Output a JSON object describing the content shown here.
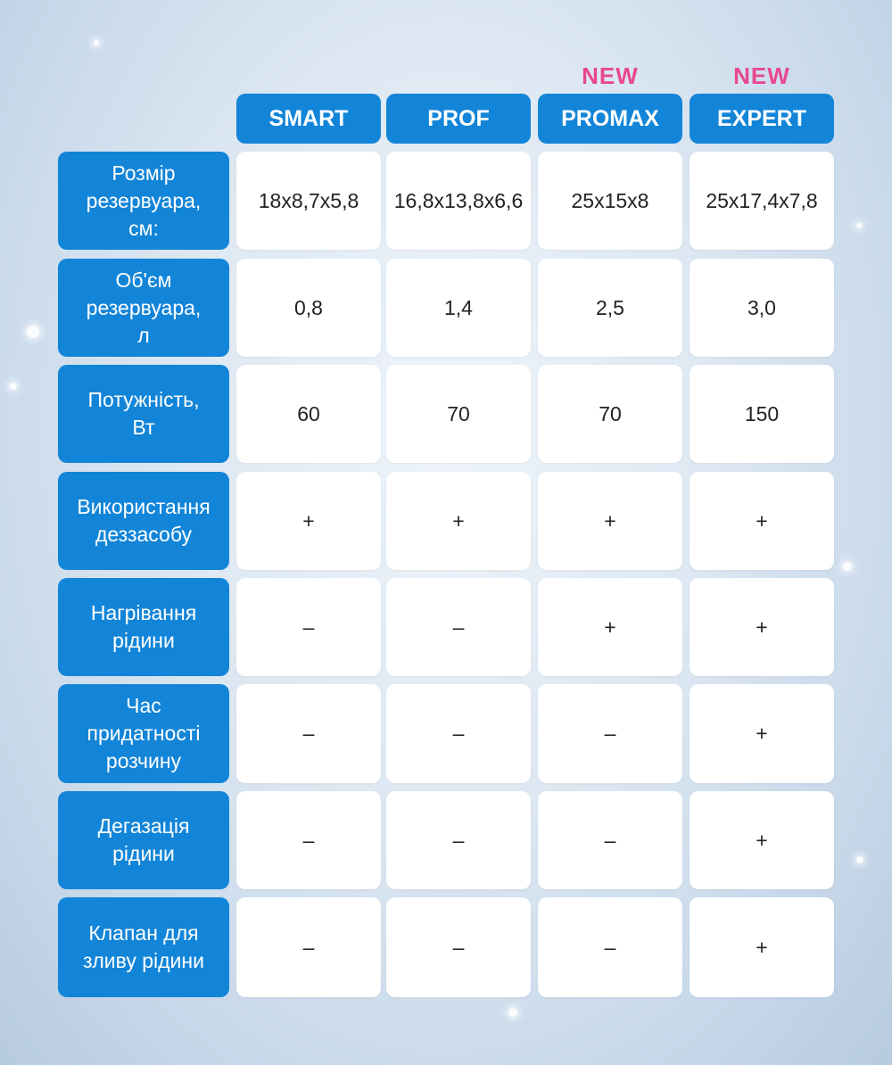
{
  "columns": [
    {
      "name": "SMART",
      "tag": ""
    },
    {
      "name": "PROF",
      "tag": ""
    },
    {
      "name": "PROMAX",
      "tag": "NEW"
    },
    {
      "name": "EXPERT",
      "tag": "NEW"
    }
  ],
  "rows": [
    {
      "label": "Розмір\nрезервуара,\nсм:",
      "values": [
        "18x8,7x5,8",
        "16,8x13,8x6,6",
        "25x15x8",
        "25x17,4x7,8"
      ]
    },
    {
      "label": "Об'єм\nрезервуара,\nл",
      "values": [
        "0,8",
        "1,4",
        "2,5",
        "3,0"
      ]
    },
    {
      "label": "Потужність,\nВт",
      "values": [
        "60",
        "70",
        "70",
        "150"
      ]
    },
    {
      "label": "Використання\nдеззасобу",
      "values": [
        "+",
        "+",
        "+",
        "+"
      ]
    },
    {
      "label": "Нагрівання\nрідини",
      "values": [
        "–",
        "–",
        "+",
        "+"
      ]
    },
    {
      "label": "Час\nпридатності\nрозчину",
      "values": [
        "–",
        "–",
        "–",
        "+"
      ]
    },
    {
      "label": "Дегазація\nрідини",
      "values": [
        "–",
        "–",
        "–",
        "+"
      ]
    },
    {
      "label": "Клапан для\nзливу рідини",
      "values": [
        "–",
        "–",
        "–",
        "+"
      ]
    }
  ]
}
